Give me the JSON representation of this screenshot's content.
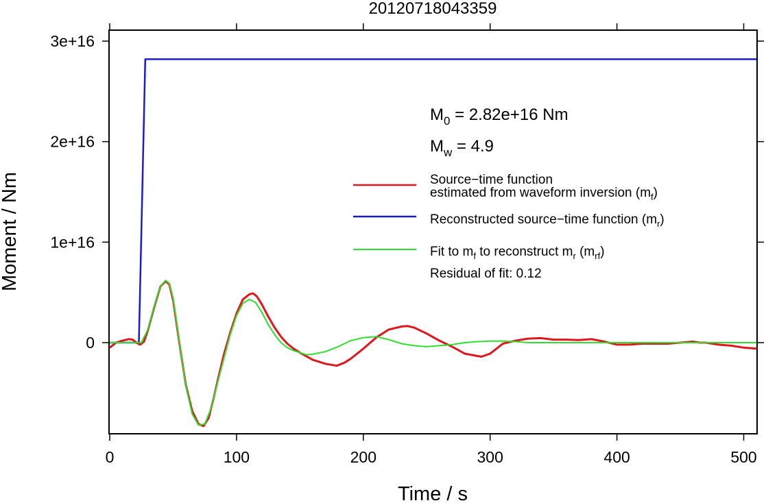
{
  "chart_data": {
    "type": "line",
    "title": "20120718043359",
    "xlabel": "Time / s",
    "ylabel": "Moment / Nm",
    "xlim": [
      0,
      510
    ],
    "ylim": [
      -9000000000000000.0,
      3.1e+16
    ],
    "xticks": [
      0,
      100,
      200,
      300,
      400,
      500
    ],
    "xtick_labels": [
      "0",
      "100",
      "200",
      "300",
      "400",
      "500"
    ],
    "yticks": [
      0,
      1e+16,
      2e+16,
      3e+16
    ],
    "ytick_labels": [
      "0",
      "1e+16",
      "2e+16",
      "3e+16"
    ],
    "grid": false,
    "legend_position": "right",
    "annotations": {
      "m0": {
        "label": "M",
        "sub": "0",
        "value": " = 2.82e+16 Nm"
      },
      "mw": {
        "label": "M",
        "sub": "w",
        "value": " = 4.9"
      },
      "residual": "Residual of fit: 0.12"
    },
    "legend": [
      {
        "line1": "Source−time function",
        "line2": "estimated from waveform inversion (m",
        "sub": "f",
        "tail": ")",
        "color": "#e0161d"
      },
      {
        "line1": "Reconstructed source−time function (m",
        "sub": "r",
        "tail": ")",
        "color": "#1a1ad0"
      },
      {
        "line1": "Fit to m",
        "sub": "f",
        "mid": " to reconstruct m",
        "sub2": "r",
        "mid2": " (m",
        "sub3": "rf",
        "tail": ")",
        "color": "#2ee02e"
      }
    ],
    "series": [
      {
        "key": "red",
        "color": "#e0161d",
        "x": [
          0,
          5,
          10,
          15,
          18,
          21,
          24,
          27,
          30,
          35,
          40,
          44,
          47,
          50,
          55,
          60,
          65,
          70,
          74,
          78,
          82,
          86,
          90,
          95,
          100,
          105,
          110,
          113,
          116,
          120,
          125,
          130,
          135,
          140,
          145,
          150,
          160,
          170,
          179,
          185,
          190,
          200,
          210,
          220,
          230,
          235,
          240,
          250,
          260,
          270,
          280,
          293,
          300,
          310,
          320,
          330,
          340,
          350,
          360,
          370,
          380,
          390,
          400,
          410,
          420,
          430,
          440,
          450,
          460,
          465,
          470,
          480,
          490,
          500,
          510
        ],
        "y": [
          -500000000000000.0,
          0,
          200000000000000.0,
          350000000000000.0,
          300000000000000.0,
          0,
          -200000000000000.0,
          100000000000000.0,
          1200000000000000.0,
          3500000000000000.0,
          5600000000000000.0,
          6100000000000000.0,
          5800000000000000.0,
          4200000000000000.0,
          -100000000000000.0,
          -4200000000000000.0,
          -6800000000000000.0,
          -8100000000000000.0,
          -8300000000000000.0,
          -7500000000000000.0,
          -5500000000000000.0,
          -3300000000000000.0,
          -1200000000000000.0,
          1000000000000000.0,
          2900000000000000.0,
          4300000000000000.0,
          4800000000000000.0,
          4900000000000000.0,
          4600000000000000.0,
          3800000000000000.0,
          2600000000000000.0,
          1500000000000000.0,
          600000000000000.0,
          -100000000000000.0,
          -600000000000000.0,
          -1000000000000000.0,
          -1700000000000000.0,
          -2100000000000000.0,
          -2300000000000000.0,
          -2000000000000000.0,
          -1600000000000000.0,
          -600000000000000.0,
          500000000000000.0,
          1300000000000000.0,
          1600000000000000.0,
          1650000000000000.0,
          1500000000000000.0,
          900000000000000.0,
          200000000000000.0,
          -400000000000000.0,
          -1100000000000000.0,
          -1400000000000000.0,
          -1100000000000000.0,
          -100000000000000.0,
          200000000000000.0,
          400000000000000.0,
          450000000000000.0,
          300000000000000.0,
          300000000000000.0,
          250000000000000.0,
          350000000000000.0,
          100000000000000.0,
          -200000000000000.0,
          -200000000000000.0,
          -100000000000000.0,
          -100000000000000.0,
          -100000000000000.0,
          0,
          100000000000000.0,
          0,
          0,
          -200000000000000.0,
          -300000000000000.0,
          -500000000000000.0,
          -600000000000000.0
        ]
      },
      {
        "key": "blue",
        "color": "#1a1ad0",
        "x": [
          0,
          23,
          28,
          510
        ],
        "y": [
          0,
          0,
          2.82e+16,
          2.82e+16
        ]
      },
      {
        "key": "green",
        "color": "#2ee02e",
        "x": [
          0,
          22,
          25,
          30,
          35,
          40,
          44,
          47,
          50,
          55,
          60,
          65,
          70,
          75,
          80,
          85,
          90,
          95,
          100,
          105,
          110,
          115,
          120,
          125,
          130,
          135,
          140,
          145,
          150,
          155,
          160,
          170,
          180,
          190,
          200,
          210,
          220,
          230,
          240,
          250,
          260,
          270,
          280,
          290,
          300,
          310,
          320,
          330,
          340,
          360,
          380,
          400,
          420,
          440,
          460,
          480,
          500,
          510
        ],
        "y": [
          0,
          0,
          0,
          1300000000000000.0,
          3600000000000000.0,
          5600000000000000.0,
          6200000000000000.0,
          5900000000000000.0,
          4400000000000000.0,
          0,
          -4300000000000000.0,
          -7100000000000000.0,
          -8200000000000000.0,
          -8100000000000000.0,
          -6500000000000000.0,
          -4000000000000000.0,
          -1600000000000000.0,
          800000000000000.0,
          2700000000000000.0,
          3900000000000000.0,
          4300000000000000.0,
          4000000000000000.0,
          3000000000000000.0,
          1800000000000000.0,
          800000000000000.0,
          0,
          -500000000000000.0,
          -800000000000000.0,
          -1000000000000000.0,
          -1200000000000000.0,
          -1150000000000000.0,
          -900000000000000.0,
          -400000000000000.0,
          200000000000000.0,
          500000000000000.0,
          600000000000000.0,
          300000000000000.0,
          -100000000000000.0,
          -300000000000000.0,
          -400000000000000.0,
          -300000000000000.0,
          -200000000000000.0,
          0,
          100000000000000.0,
          150000000000000.0,
          150000000000000.0,
          100000000000000.0,
          0,
          0,
          0,
          0,
          0,
          0,
          0,
          0,
          0,
          0,
          0
        ]
      }
    ]
  }
}
